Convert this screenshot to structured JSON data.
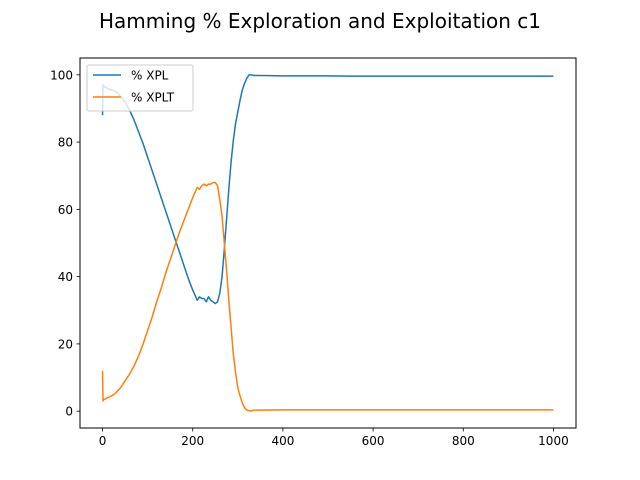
{
  "chart_data": {
    "type": "line",
    "title": "Hamming % Exploration and Exploitation c1",
    "xlabel": "",
    "ylabel": "",
    "xlim": [
      -50,
      1050
    ],
    "ylim": [
      -5,
      105
    ],
    "xticks": [
      0,
      200,
      400,
      600,
      800,
      1000
    ],
    "yticks": [
      0,
      20,
      40,
      60,
      80,
      100
    ],
    "grid": false,
    "legend_loc": "upper left",
    "series": [
      {
        "name": "% XPL",
        "color": "#1f77b4",
        "x": [
          0,
          1,
          2,
          5,
          10,
          20,
          30,
          40,
          50,
          60,
          70,
          80,
          90,
          100,
          110,
          120,
          130,
          140,
          150,
          160,
          170,
          180,
          190,
          200,
          210,
          215,
          220,
          225,
          230,
          235,
          240,
          245,
          250,
          255,
          260,
          265,
          270,
          275,
          280,
          285,
          290,
          295,
          300,
          305,
          310,
          315,
          320,
          325,
          330,
          335,
          340,
          350,
          400,
          450,
          500,
          550,
          600,
          650,
          700,
          750,
          800,
          850,
          900,
          950,
          1000
        ],
        "y": [
          88,
          97,
          96.5,
          96.5,
          96,
          95.5,
          95,
          93.5,
          92,
          89.5,
          86.5,
          83,
          79.5,
          75.5,
          71.5,
          67.5,
          63.5,
          59.5,
          55.5,
          51.5,
          47.5,
          43.5,
          39.5,
          36,
          33,
          34,
          33.5,
          33.5,
          32.5,
          34,
          33,
          32.5,
          32,
          32.5,
          35,
          40,
          48,
          57,
          66,
          74,
          80.5,
          85.5,
          89,
          92.5,
          95.5,
          97.5,
          99,
          100,
          100,
          99.8,
          99.8,
          99.8,
          99.7,
          99.7,
          99.7,
          99.6,
          99.6,
          99.6,
          99.6,
          99.6,
          99.6,
          99.6,
          99.6,
          99.6,
          99.6
        ]
      },
      {
        "name": "% XPLT",
        "color": "#ff7f0e",
        "x": [
          0,
          1,
          2,
          5,
          10,
          20,
          30,
          40,
          50,
          60,
          70,
          80,
          90,
          100,
          110,
          120,
          130,
          140,
          150,
          160,
          170,
          180,
          190,
          200,
          210,
          215,
          220,
          225,
          230,
          235,
          240,
          245,
          250,
          255,
          260,
          265,
          270,
          275,
          280,
          285,
          290,
          295,
          300,
          305,
          310,
          315,
          320,
          325,
          330,
          335,
          340,
          350,
          400,
          450,
          500,
          550,
          600,
          650,
          700,
          750,
          800,
          850,
          900,
          950,
          1000
        ],
        "y": [
          12,
          3,
          3.5,
          3.5,
          4,
          4.5,
          5.5,
          7,
          9,
          11,
          13.5,
          16.5,
          20,
          24,
          28,
          32.5,
          36.5,
          41,
          45,
          49,
          53,
          56.5,
          60,
          63.5,
          66.5,
          66,
          67,
          67.5,
          67,
          67.5,
          67.5,
          68,
          68,
          67,
          63,
          58,
          50,
          42,
          33,
          25,
          17,
          11.5,
          7,
          4.5,
          2.5,
          1,
          0.3,
          0.1,
          0.1,
          0.3,
          0.3,
          0.3,
          0.4,
          0.4,
          0.4,
          0.4,
          0.4,
          0.4,
          0.4,
          0.4,
          0.4,
          0.4,
          0.4,
          0.4,
          0.4
        ]
      }
    ]
  }
}
